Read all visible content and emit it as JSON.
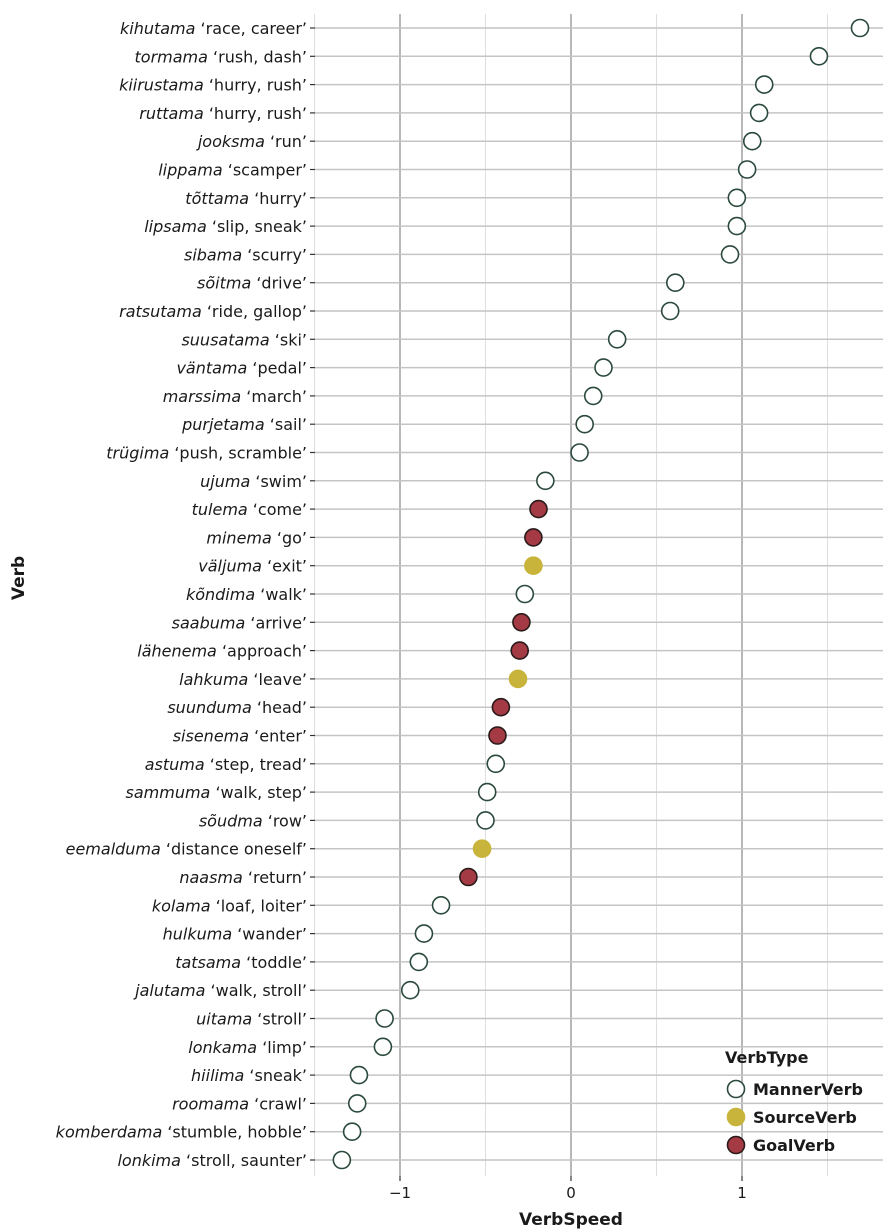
{
  "chart_data": {
    "type": "scatter",
    "xlabel": "VerbSpeed",
    "ylabel": "Verb",
    "xlim": [
      -1.5,
      1.8
    ],
    "xticks": [
      -1,
      0,
      1
    ],
    "xtick_labels": [
      "−1",
      "0",
      "1"
    ],
    "grid": true,
    "legend": {
      "title": "VerbType",
      "placement": "bottom-right",
      "entries": [
        {
          "name": "MannerVerb",
          "fill": "#ffffff",
          "stroke": "#2b4a3c"
        },
        {
          "name": "SourceVerb",
          "fill": "#c8b43a",
          "stroke": "#c8b43a"
        },
        {
          "name": "GoalVerb",
          "fill": "#a33a44",
          "stroke": "#2a1a1a"
        }
      ]
    },
    "points": [
      {
        "verb": "kihutama",
        "gloss": "‘race, career’",
        "x": 1.69,
        "type": "MannerVerb"
      },
      {
        "verb": "tormama",
        "gloss": "‘rush, dash’",
        "x": 1.45,
        "type": "MannerVerb"
      },
      {
        "verb": "kiirustama",
        "gloss": "‘hurry, rush’",
        "x": 1.13,
        "type": "MannerVerb"
      },
      {
        "verb": "ruttama",
        "gloss": "‘hurry, rush’",
        "x": 1.1,
        "type": "MannerVerb"
      },
      {
        "verb": "jooksma",
        "gloss": "‘run’",
        "x": 1.06,
        "type": "MannerVerb"
      },
      {
        "verb": "lippama",
        "gloss": "‘scamper’",
        "x": 1.03,
        "type": "MannerVerb"
      },
      {
        "verb": "tõttama",
        "gloss": "‘hurry’",
        "x": 0.97,
        "type": "MannerVerb"
      },
      {
        "verb": "lipsama",
        "gloss": "‘slip, sneak’",
        "x": 0.97,
        "type": "MannerVerb"
      },
      {
        "verb": "sibama",
        "gloss": "‘scurry’",
        "x": 0.93,
        "type": "MannerVerb"
      },
      {
        "verb": "sõitma",
        "gloss": "‘drive’",
        "x": 0.61,
        "type": "MannerVerb"
      },
      {
        "verb": "ratsutama",
        "gloss": "‘ride, gallop’",
        "x": 0.58,
        "type": "MannerVerb"
      },
      {
        "verb": "suusatama",
        "gloss": "‘ski’",
        "x": 0.27,
        "type": "MannerVerb"
      },
      {
        "verb": "väntama",
        "gloss": "‘pedal’",
        "x": 0.19,
        "type": "MannerVerb"
      },
      {
        "verb": "marssima",
        "gloss": "‘march’",
        "x": 0.13,
        "type": "MannerVerb"
      },
      {
        "verb": "purjetama",
        "gloss": "‘sail’",
        "x": 0.08,
        "type": "MannerVerb"
      },
      {
        "verb": "trügima",
        "gloss": "‘push, scramble’",
        "x": 0.05,
        "type": "MannerVerb"
      },
      {
        "verb": "ujuma",
        "gloss": "‘swim’",
        "x": -0.15,
        "type": "MannerVerb"
      },
      {
        "verb": "tulema",
        "gloss": "‘come’",
        "x": -0.19,
        "type": "GoalVerb"
      },
      {
        "verb": "minema",
        "gloss": "‘go’",
        "x": -0.22,
        "type": "GoalVerb"
      },
      {
        "verb": "väljuma",
        "gloss": "‘exit’",
        "x": -0.22,
        "type": "SourceVerb"
      },
      {
        "verb": "kõndima",
        "gloss": "‘walk’",
        "x": -0.27,
        "type": "MannerVerb"
      },
      {
        "verb": "saabuma",
        "gloss": "‘arrive’",
        "x": -0.29,
        "type": "GoalVerb"
      },
      {
        "verb": "lähenema",
        "gloss": "‘approach’",
        "x": -0.3,
        "type": "GoalVerb"
      },
      {
        "verb": "lahkuma",
        "gloss": "‘leave’",
        "x": -0.31,
        "type": "SourceVerb"
      },
      {
        "verb": "suunduma",
        "gloss": "‘head’",
        "x": -0.41,
        "type": "GoalVerb"
      },
      {
        "verb": "sisenema",
        "gloss": "‘enter’",
        "x": -0.43,
        "type": "GoalVerb"
      },
      {
        "verb": "astuma",
        "gloss": "‘step, tread’",
        "x": -0.44,
        "type": "MannerVerb"
      },
      {
        "verb": "sammuma",
        "gloss": "‘walk, step’",
        "x": -0.49,
        "type": "MannerVerb"
      },
      {
        "verb": "sõudma",
        "gloss": "‘row’",
        "x": -0.5,
        "type": "MannerVerb"
      },
      {
        "verb": "eemalduma",
        "gloss": "‘distance oneself’",
        "x": -0.52,
        "type": "SourceVerb"
      },
      {
        "verb": "naasma",
        "gloss": "‘return’",
        "x": -0.6,
        "type": "GoalVerb"
      },
      {
        "verb": "kolama",
        "gloss": "‘loaf, loiter’",
        "x": -0.76,
        "type": "MannerVerb"
      },
      {
        "verb": "hulkuma",
        "gloss": "‘wander’",
        "x": -0.86,
        "type": "MannerVerb"
      },
      {
        "verb": "tatsama",
        "gloss": "‘toddle’",
        "x": -0.89,
        "type": "MannerVerb"
      },
      {
        "verb": "jalutama",
        "gloss": "‘walk, stroll’",
        "x": -0.94,
        "type": "MannerVerb"
      },
      {
        "verb": "uitama",
        "gloss": "‘stroll’",
        "x": -1.09,
        "type": "MannerVerb"
      },
      {
        "verb": "lonkama",
        "gloss": "‘limp’",
        "x": -1.1,
        "type": "MannerVerb"
      },
      {
        "verb": "hiilima",
        "gloss": "‘sneak’",
        "x": -1.24,
        "type": "MannerVerb"
      },
      {
        "verb": "roomama",
        "gloss": "‘crawl’",
        "x": -1.25,
        "type": "MannerVerb"
      },
      {
        "verb": "komberdama",
        "gloss": "‘stumble, hobble’",
        "x": -1.28,
        "type": "MannerVerb"
      },
      {
        "verb": "lonkima",
        "gloss": "‘stroll, saunter’",
        "x": -1.34,
        "type": "MannerVerb"
      }
    ]
  }
}
